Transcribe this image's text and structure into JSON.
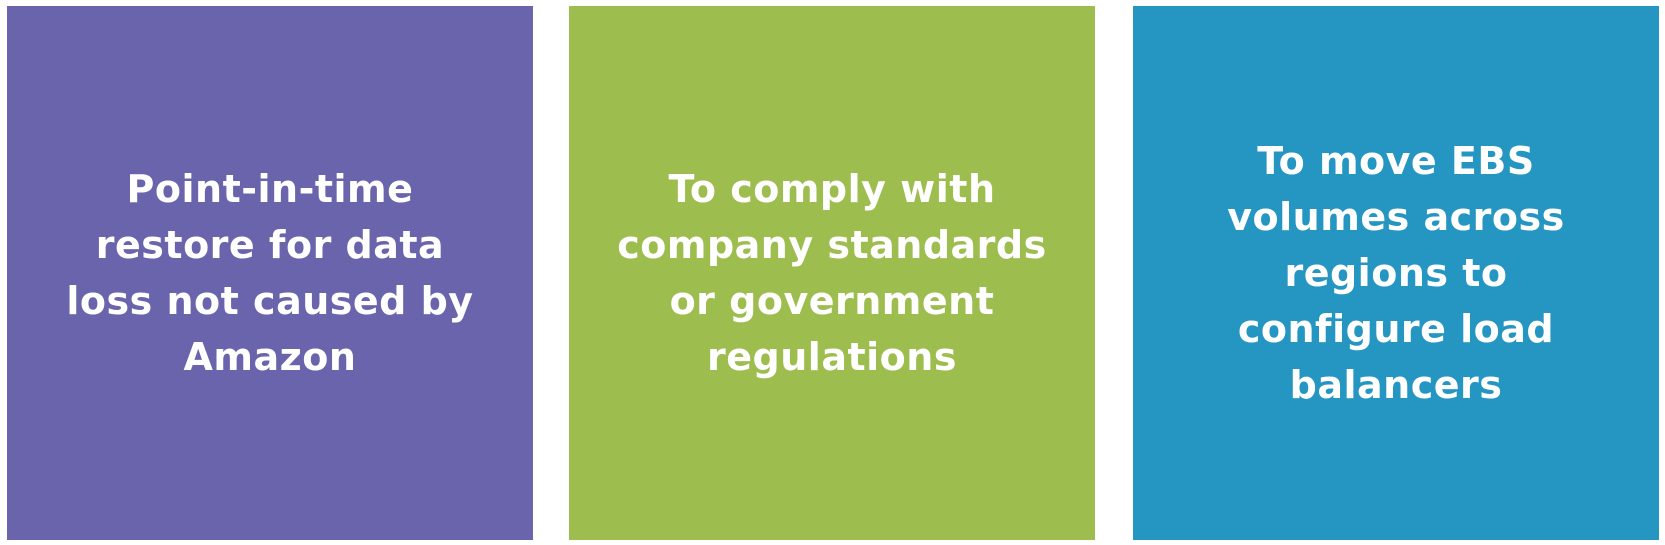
{
  "cards": [
    {
      "text": "Point-in-time\nrestore for data\nloss not caused by\nAmazon",
      "color": "#6964AB"
    },
    {
      "text": "To comply with\ncompany standards\nor government\nregulations",
      "color": "#9EBD4F"
    },
    {
      "text": "To move EBS\nvolumes across\nregions to\nconfigure load\nbalancers",
      "color": "#2595C2"
    }
  ]
}
